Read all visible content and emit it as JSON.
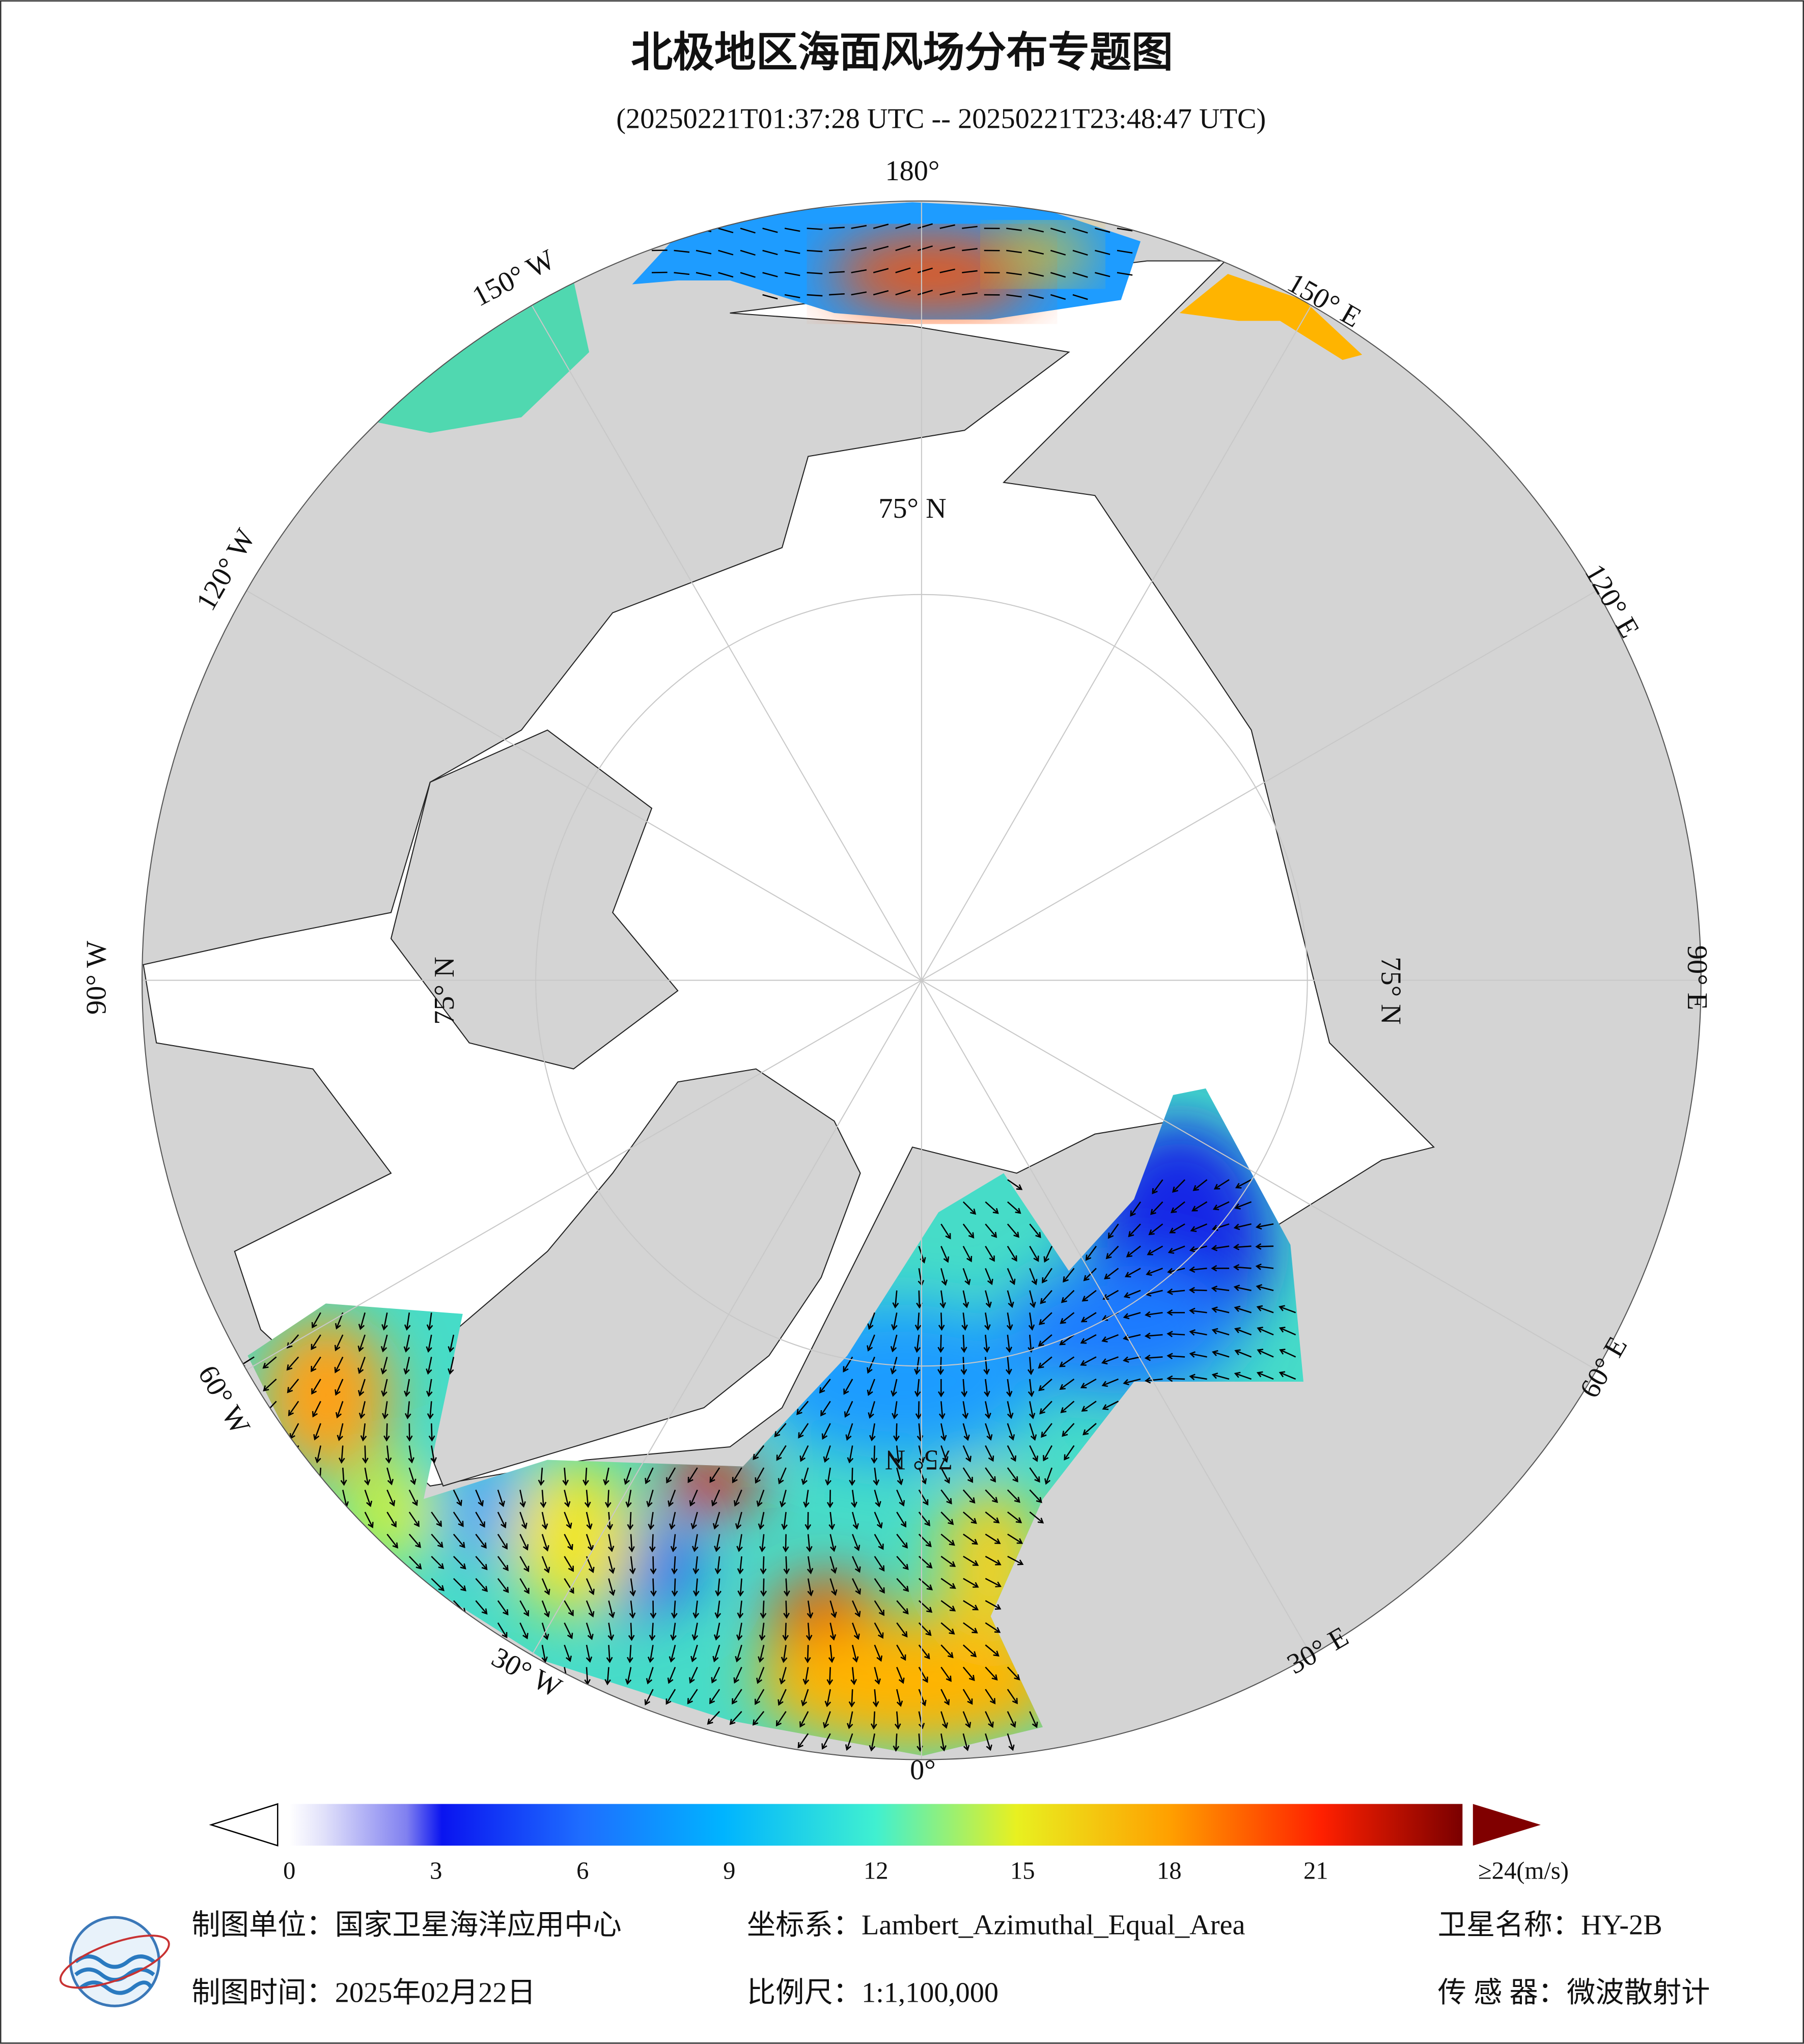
{
  "header": {
    "title": "北极地区海面风场分布专题图",
    "subtitle": "(20250221T01:37:28 UTC -- 20250221T23:48:47 UTC)"
  },
  "map": {
    "longitude_labels": [
      "180°",
      "150° W",
      "120° W",
      "90° W",
      "60° W",
      "30° W",
      "0°",
      "30° E",
      "60° E",
      "90° E",
      "120° E",
      "150° E"
    ],
    "latitude_labels": [
      "75° N",
      "75° N",
      "75° N",
      "75° N"
    ]
  },
  "colorbar": {
    "range": [
      0,
      24
    ],
    "ticks": [
      0,
      3,
      6,
      9,
      12,
      15,
      18,
      21,
      {
        "value": 24,
        "label": "≥24(m/s)"
      }
    ]
  },
  "footer": {
    "producer": "制图单位：国家卫星海洋应用中心",
    "projection": "坐标系：Lambert_Azimuthal_Equal_Area",
    "satellite": "卫星名称：HY-2B",
    "date": "制图时间：2025年02月22日",
    "scale": "比例尺：1:1,100,000",
    "sensor": "传 感 器：微波散射计"
  }
}
